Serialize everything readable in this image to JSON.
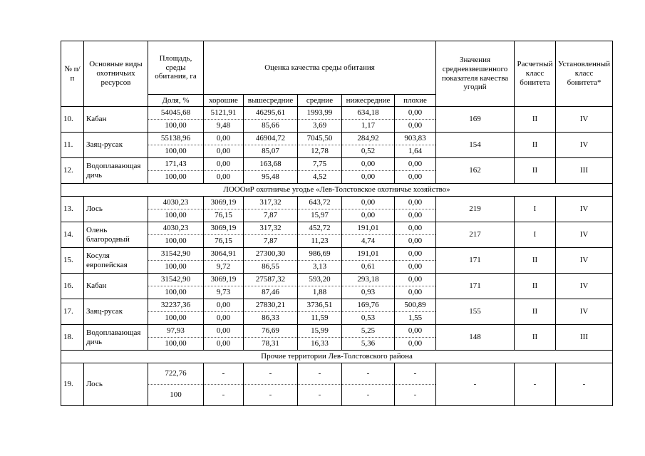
{
  "table": {
    "header": {
      "num": "№ п/п",
      "species": "Основные виды охотничьих ресурсов",
      "area": "Площадь, среды обитания, га",
      "area_sub": "Доля, %",
      "quality_group": "Оценка качества среды обитания",
      "quality_cols": [
        "хорошие",
        "вышесредние",
        "средние",
        "нижесредние",
        "плохие"
      ],
      "value": "Значения средневзвешенного показателя качества угодий",
      "calc_class": "Расчетный класс бонитета",
      "set_class": "Установленный класс бонитета*"
    },
    "rows": [
      {
        "num": "10.",
        "species": "Кабан",
        "r1": [
          "54045,68",
          "5121,91",
          "46295,61",
          "1993,99",
          "634,18",
          "0,00"
        ],
        "r2": [
          "100,00",
          "9,48",
          "85,66",
          "3,69",
          "1,17",
          "0,00"
        ],
        "value": "169",
        "calc": "II",
        "set": "IV"
      },
      {
        "num": "11.",
        "species": "Заяц-русак",
        "r1": [
          "55138,96",
          "0,00",
          "46904,72",
          "7045,50",
          "284,92",
          "903,83"
        ],
        "r2": [
          "100,00",
          "0,00",
          "85,07",
          "12,78",
          "0,52",
          "1,64"
        ],
        "value": "154",
        "calc": "II",
        "set": "IV"
      },
      {
        "num": "12.",
        "species": "Водоплавающая дичь",
        "r1": [
          "171,43",
          "0,00",
          "163,68",
          "7,75",
          "0,00",
          "0,00"
        ],
        "r2": [
          "100,00",
          "0,00",
          "95,48",
          "4,52",
          "0,00",
          "0,00"
        ],
        "value": "162",
        "calc": "II",
        "set": "III"
      },
      {
        "section": "ЛОООиР охотничье угодье «Лев-Толстовское охотничье хозяйство»"
      },
      {
        "num": "13.",
        "species": "Лось",
        "r1": [
          "4030,23",
          "3069,19",
          "317,32",
          "643,72",
          "0,00",
          "0,00"
        ],
        "r2": [
          "100,00",
          "76,15",
          "7,87",
          "15,97",
          "0,00",
          "0,00"
        ],
        "value": "219",
        "calc": "I",
        "set": "IV"
      },
      {
        "num": "14.",
        "species": "Олень благородный",
        "r1": [
          "4030,23",
          "3069,19",
          "317,32",
          "452,72",
          "191,01",
          "0,00"
        ],
        "r2": [
          "100,00",
          "76,15",
          "7,87",
          "11,23",
          "4,74",
          "0,00"
        ],
        "value": "217",
        "calc": "I",
        "set": "IV"
      },
      {
        "num": "15.",
        "species": "Косуля европейская",
        "r1": [
          "31542,90",
          "3064,91",
          "27300,30",
          "986,69",
          "191,01",
          "0,00"
        ],
        "r2": [
          "100,00",
          "9,72",
          "86,55",
          "3,13",
          "0,61",
          "0,00"
        ],
        "value": "171",
        "calc": "II",
        "set": "IV"
      },
      {
        "num": "16.",
        "species": "Кабан",
        "r1": [
          "31542,90",
          "3069,19",
          "27587,32",
          "593,20",
          "293,18",
          "0,00"
        ],
        "r2": [
          "100,00",
          "9,73",
          "87,46",
          "1,88",
          "0,93",
          "0,00"
        ],
        "value": "171",
        "calc": "II",
        "set": "IV"
      },
      {
        "num": "17.",
        "species": "Заяц-русак",
        "r1": [
          "32237,36",
          "0,00",
          "27830,21",
          "3736,51",
          "169,76",
          "500,89"
        ],
        "r2": [
          "100,00",
          "0,00",
          "86,33",
          "11,59",
          "0,53",
          "1,55"
        ],
        "value": "155",
        "calc": "II",
        "set": "IV"
      },
      {
        "num": "18.",
        "species": "Водоплавающая дичь",
        "r1": [
          "97,93",
          "0,00",
          "76,69",
          "15,99",
          "5,25",
          "0,00"
        ],
        "r2": [
          "100,00",
          "0,00",
          "78,31",
          "16,33",
          "5,36",
          "0,00"
        ],
        "value": "148",
        "calc": "II",
        "set": "III"
      },
      {
        "section": "Прочие территории Лев-Толстовского района"
      },
      {
        "num": "19.",
        "species": "Лось",
        "tall": true,
        "r1": [
          "722,76",
          "-",
          "-",
          "-",
          "-",
          "-"
        ],
        "r2": [
          "100",
          "-",
          "-",
          "-",
          "-",
          "-"
        ],
        "value": "-",
        "calc": "-",
        "set": "-"
      }
    ]
  }
}
